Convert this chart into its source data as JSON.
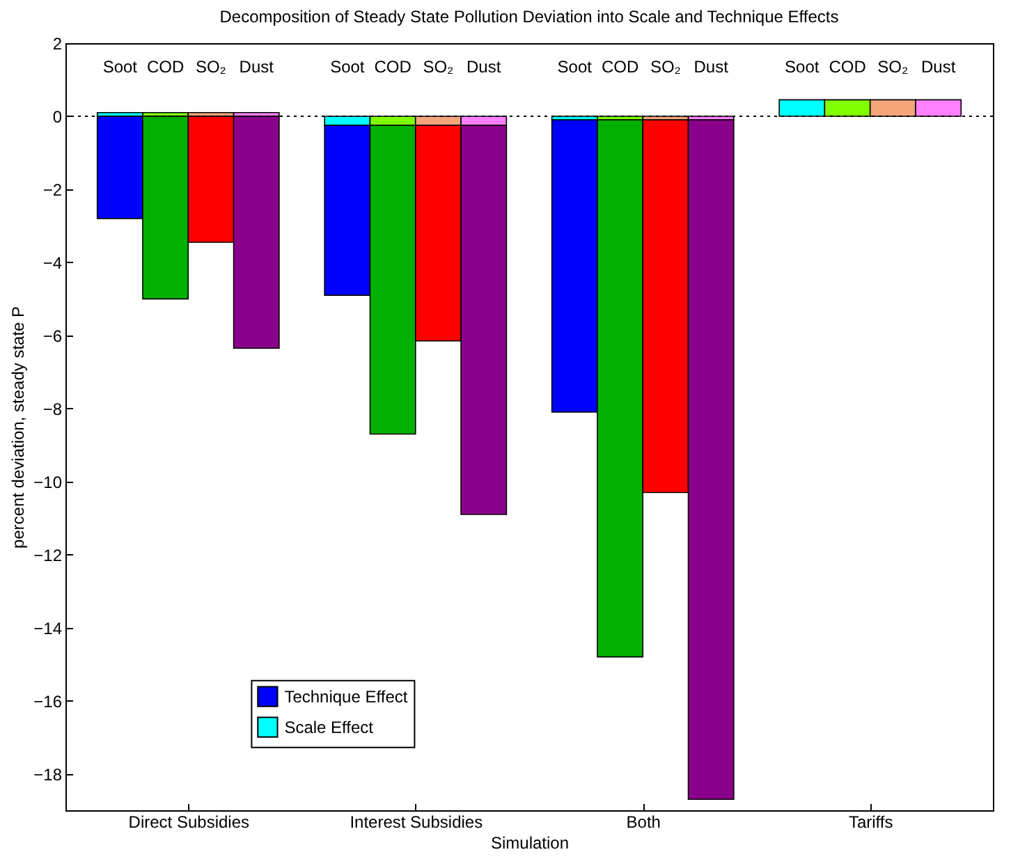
{
  "chart_data": {
    "type": "bar",
    "title": "Decomposition of Steady State Pollution Deviation into Scale and Technique Effects",
    "xlabel": "Simulation",
    "ylabel": "percent deviation, steady state P",
    "categories": [
      "Soot",
      "COD",
      "SO₂",
      "Dust",
      null,
      "Soot",
      "COD",
      "SO₂",
      "Dust",
      null,
      "Soot",
      "COD",
      "SO₂",
      "Dust",
      null,
      "Soot",
      "COD",
      "SO₂",
      "Dust"
    ],
    "stacked": true,
    "series": [
      {
        "name": "Scale Effect",
        "colors": [
          "#00ffff",
          "#80ff00",
          "#f4a57a",
          "#ff80ff",
          null,
          "#00ffff",
          "#80ff00",
          "#f4a57a",
          "#ff80ff",
          null,
          "#00ffff",
          "#80ff00",
          "#f4a57a",
          "#ff80ff",
          null,
          "#00ffff",
          "#80ff00",
          "#f4a57a",
          "#ff80ff"
        ],
        "values": [
          0.1,
          0.1,
          0.1,
          0.1,
          null,
          -0.25,
          -0.25,
          -0.25,
          -0.25,
          null,
          -0.1,
          -0.1,
          -0.1,
          -0.1,
          null,
          0.45,
          0.45,
          0.45,
          0.45
        ]
      },
      {
        "name": "Technique Effect",
        "colors": [
          "#0000ff",
          "#00b000",
          "#ff0000",
          "#8b008b",
          null,
          "#0000ff",
          "#00b000",
          "#ff0000",
          "#8b008b",
          null,
          "#0000ff",
          "#00b000",
          "#ff0000",
          "#8b008b",
          null,
          null,
          null,
          null,
          null
        ],
        "values": [
          -2.8,
          -5.0,
          -3.45,
          -6.35,
          null,
          -4.65,
          -8.45,
          -5.9,
          -10.65,
          null,
          -8.0,
          -14.7,
          -10.2,
          -18.6,
          null,
          null,
          null,
          null,
          null
        ]
      }
    ],
    "ylim": [
      -19,
      2
    ],
    "yticks": [
      -18,
      -16,
      -14,
      -12,
      -10,
      -8,
      -6,
      -4,
      -2,
      0,
      2
    ],
    "ref_lines": [
      {
        "axis": "y",
        "value": 0,
        "line_style": "dotted",
        "color": "#000000"
      }
    ],
    "annotations": [
      "Direct Subsidies",
      "Interest Subsidies",
      "Both",
      "Tariffs"
    ],
    "legend": "bottom left",
    "grid": false
  }
}
